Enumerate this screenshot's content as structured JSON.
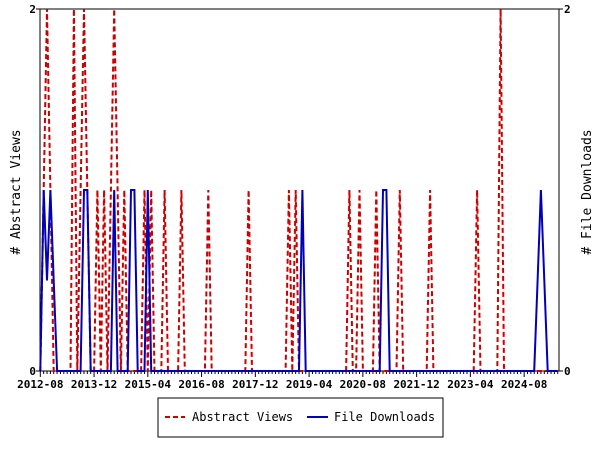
{
  "chart_data": {
    "type": "line",
    "x_start": "2012-08",
    "x_end": "2025-06",
    "x_interval": "month",
    "x_tick_labels": [
      "2012-08",
      "2013-12",
      "2015-04",
      "2016-08",
      "2017-12",
      "2019-04",
      "2020-08",
      "2021-12",
      "2023-04",
      "2024-08"
    ],
    "x_tick_label_step_months": 16,
    "ylabel_left": "# Abstract Views",
    "ylabel_right": "# File Downloads",
    "ylim_left": [
      0,
      2
    ],
    "ylim_right": [
      0,
      2
    ],
    "y_tick_labels_left": [
      "0",
      "2"
    ],
    "y_tick_labels_right": [
      "0",
      "2"
    ],
    "grid": false,
    "legend_position": "bottom",
    "series": [
      {
        "name": "Abstract Views",
        "axis": "left",
        "color": "#cc0000",
        "style": "dashed",
        "values": [
          0,
          1,
          2,
          1,
          0,
          0,
          0,
          0,
          0,
          0,
          2,
          0,
          1,
          2,
          1,
          0,
          0,
          1,
          0,
          1,
          0,
          1,
          2,
          1,
          0,
          1,
          0,
          0,
          0,
          0,
          0,
          1,
          0,
          1,
          0,
          0,
          0,
          1,
          0,
          0,
          0,
          0,
          1,
          0,
          0,
          0,
          0,
          0,
          0,
          0,
          1,
          0,
          0,
          0,
          0,
          0,
          0,
          0,
          0,
          0,
          0,
          0,
          1,
          0,
          0,
          0,
          0,
          0,
          0,
          0,
          0,
          0,
          0,
          0,
          1,
          0,
          1,
          0,
          0,
          0,
          0,
          0,
          0,
          0,
          0,
          0,
          0,
          0,
          0,
          0,
          0,
          0,
          1,
          0,
          0,
          1,
          0,
          0,
          0,
          0,
          1,
          0,
          0,
          0,
          0,
          0,
          0,
          1,
          0,
          0,
          0,
          0,
          0,
          0,
          0,
          0,
          1,
          0,
          0,
          0,
          0,
          0,
          0,
          0,
          0,
          0,
          0,
          0,
          0,
          0,
          1,
          0,
          0,
          0,
          0,
          0,
          0,
          2,
          0,
          0,
          0,
          0,
          0,
          0,
          0,
          0,
          0,
          0,
          0,
          0,
          0,
          0,
          0,
          0,
          0
        ]
      },
      {
        "name": "File Downloads",
        "axis": "right",
        "color": "#0000bb",
        "style": "solid",
        "values": [
          0,
          1,
          0.5,
          1,
          0.5,
          0,
          0,
          0,
          0,
          0,
          0,
          0,
          0,
          1,
          1,
          0,
          0,
          0,
          0,
          0,
          0,
          0,
          1,
          0,
          0,
          0,
          0,
          1,
          1,
          0,
          0,
          0,
          1,
          0,
          0,
          0,
          0,
          0,
          0,
          0,
          0,
          0,
          0,
          0,
          0,
          0,
          0,
          0,
          0,
          0,
          0,
          0,
          0,
          0,
          0,
          0,
          0,
          0,
          0,
          0,
          0,
          0,
          0,
          0,
          0,
          0,
          0,
          0,
          0,
          0,
          0,
          0,
          0,
          0,
          0,
          0,
          0,
          0,
          1,
          0,
          0,
          0,
          0,
          0,
          0,
          0,
          0,
          0,
          0,
          0,
          0,
          0,
          0,
          0,
          0,
          0,
          0,
          0,
          0,
          0,
          0,
          0,
          1,
          1,
          0,
          0,
          0,
          0,
          0,
          0,
          0,
          0,
          0,
          0,
          0,
          0,
          0,
          0,
          0,
          0,
          0,
          0,
          0,
          0,
          0,
          0,
          0,
          0,
          0,
          0,
          0,
          0,
          0,
          0,
          0,
          0,
          0,
          0,
          0,
          0,
          0,
          0,
          0,
          0,
          0,
          0,
          0,
          0,
          0.5,
          1,
          0.5,
          0,
          0,
          0,
          0
        ]
      }
    ]
  }
}
